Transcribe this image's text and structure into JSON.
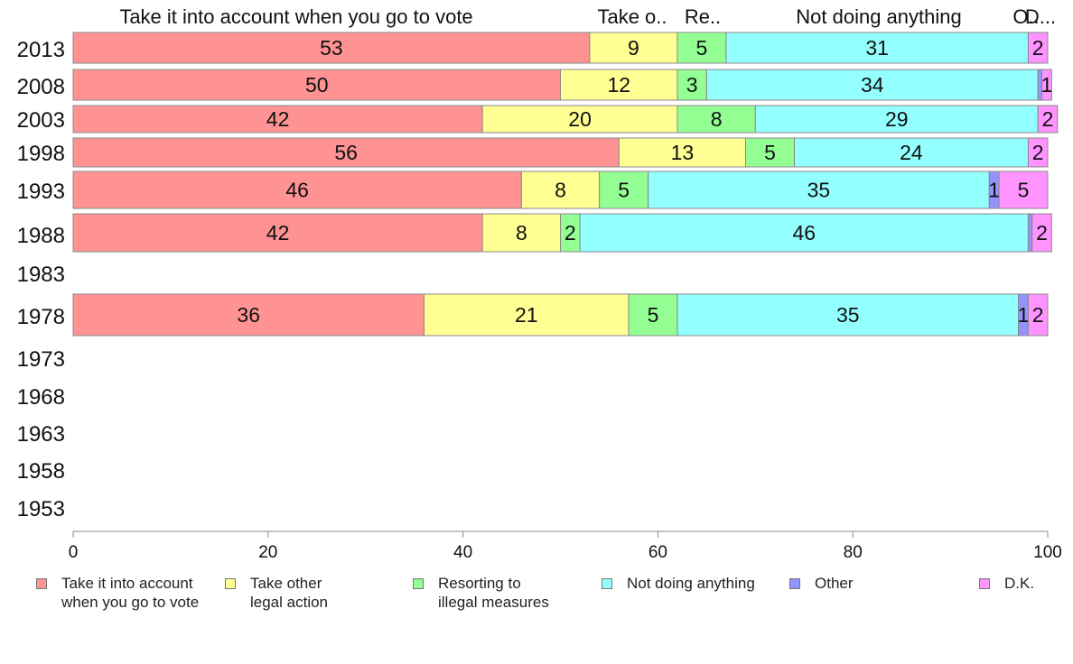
{
  "chart_data": {
    "type": "bar",
    "orientation": "horizontal",
    "stacked": true,
    "categories": [
      "2013",
      "2008",
      "2003",
      "1998",
      "1993",
      "1988",
      "1983",
      "1978",
      "1973",
      "1968",
      "1963",
      "1958",
      "1953"
    ],
    "series": [
      {
        "name": "Take it into account when you go to vote",
        "header": "Take it into account when you go to vote",
        "legend": "Take it into account\nwhen you go to vote",
        "color": "#ff9393",
        "values": [
          53,
          50,
          42,
          56,
          46,
          42,
          null,
          36,
          null,
          null,
          null,
          null,
          null
        ]
      },
      {
        "name": "Take other legal action",
        "header": "Take o..",
        "legend": "Take other\nlegal action",
        "color": "#ffff93",
        "values": [
          9,
          12,
          20,
          13,
          8,
          8,
          null,
          21,
          null,
          null,
          null,
          null,
          null
        ]
      },
      {
        "name": "Resorting to illegal measures",
        "header": "Re..",
        "legend": "Resorting to\nillegal measures",
        "color": "#93ff93",
        "values": [
          5,
          3,
          8,
          5,
          5,
          2,
          null,
          5,
          null,
          null,
          null,
          null,
          null
        ]
      },
      {
        "name": "Not doing anything",
        "header": "Not doing anything",
        "legend": "Not doing anything",
        "color": "#93ffff",
        "values": [
          31,
          34,
          29,
          24,
          35,
          46,
          null,
          35,
          null,
          null,
          null,
          null,
          null
        ]
      },
      {
        "name": "Other",
        "header": "O..",
        "legend": "Other",
        "color": "#9393ff",
        "values": [
          0,
          0.4,
          0,
          0,
          1,
          0.4,
          null,
          1,
          null,
          null,
          null,
          null,
          null
        ],
        "labels": [
          "",
          "",
          "",
          "",
          "1",
          "",
          "",
          "1",
          "",
          "",
          "",
          "",
          ""
        ]
      },
      {
        "name": "D.K.",
        "header": "D...",
        "legend": "D.K.",
        "color": "#ff93ff",
        "values": [
          2,
          1,
          2,
          2,
          5,
          2,
          null,
          2,
          null,
          null,
          null,
          null,
          null
        ]
      }
    ],
    "xlim": [
      0,
      100
    ],
    "xticks": [
      0,
      20,
      40,
      60,
      80,
      100
    ],
    "legend_position": "bottom",
    "grid": false
  }
}
